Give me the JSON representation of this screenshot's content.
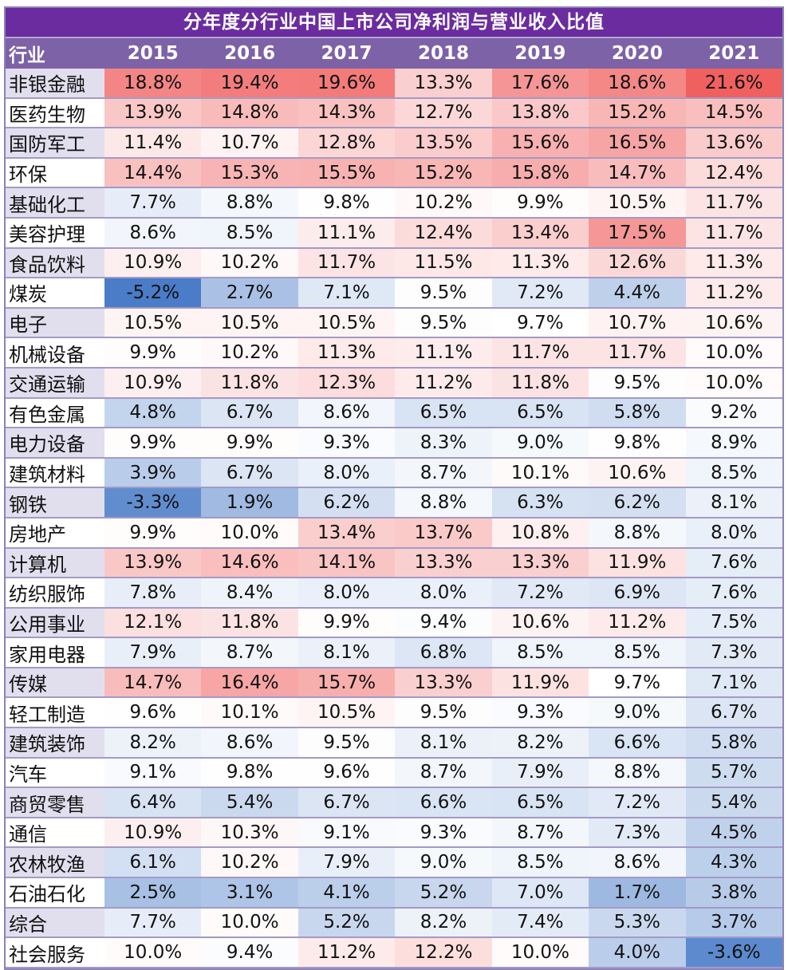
{
  "title": "分年度分行业中国上市公司净利润与营业收入比值",
  "header": {
    "industry_label": "行业",
    "years": [
      "2015",
      "2016",
      "2017",
      "2018",
      "2019",
      "2020",
      "2021"
    ]
  },
  "colors": {
    "title_bg": "#6a2c9e",
    "header_bg": "#7d62a8",
    "low": "#4a7cc8",
    "mid": "#ffffff",
    "high": "#f0605f"
  },
  "chart_data": {
    "type": "table",
    "title": "分年度分行业中国上市公司净利润与营业收入比值",
    "columns": [
      "行业",
      "2015",
      "2016",
      "2017",
      "2018",
      "2019",
      "2020",
      "2021"
    ],
    "unit": "%",
    "rows": [
      {
        "industry": "非银金融",
        "values": [
          18.8,
          19.4,
          19.6,
          13.3,
          17.6,
          18.6,
          21.6
        ]
      },
      {
        "industry": "医药生物",
        "values": [
          13.9,
          14.8,
          14.3,
          12.7,
          13.8,
          15.2,
          14.5
        ]
      },
      {
        "industry": "国防军工",
        "values": [
          11.4,
          10.7,
          12.8,
          13.5,
          15.6,
          16.5,
          13.6
        ]
      },
      {
        "industry": "环保",
        "values": [
          14.4,
          15.3,
          15.5,
          15.2,
          15.8,
          14.7,
          12.4
        ]
      },
      {
        "industry": "基础化工",
        "values": [
          7.7,
          8.8,
          9.8,
          10.2,
          9.9,
          10.5,
          11.7
        ]
      },
      {
        "industry": "美容护理",
        "values": [
          8.6,
          8.5,
          11.1,
          12.4,
          13.4,
          17.5,
          11.7
        ]
      },
      {
        "industry": "食品饮料",
        "values": [
          10.9,
          10.2,
          11.7,
          11.5,
          11.3,
          12.6,
          11.3
        ]
      },
      {
        "industry": "煤炭",
        "values": [
          -5.2,
          2.7,
          7.1,
          9.5,
          7.2,
          4.4,
          11.2
        ]
      },
      {
        "industry": "电子",
        "values": [
          10.5,
          10.5,
          10.5,
          9.5,
          9.7,
          10.7,
          10.6
        ]
      },
      {
        "industry": "机械设备",
        "values": [
          9.9,
          10.2,
          11.3,
          11.1,
          11.7,
          11.7,
          10.0
        ]
      },
      {
        "industry": "交通运输",
        "values": [
          10.9,
          11.8,
          12.3,
          11.2,
          11.8,
          9.5,
          10.0
        ]
      },
      {
        "industry": "有色金属",
        "values": [
          4.8,
          6.7,
          8.6,
          6.5,
          6.5,
          5.8,
          9.2
        ]
      },
      {
        "industry": "电力设备",
        "values": [
          9.9,
          9.9,
          9.3,
          8.3,
          9.0,
          9.8,
          8.9
        ]
      },
      {
        "industry": "建筑材料",
        "values": [
          3.9,
          6.7,
          8.0,
          8.7,
          10.1,
          10.6,
          8.5
        ]
      },
      {
        "industry": "钢铁",
        "values": [
          -3.3,
          1.9,
          6.2,
          8.8,
          6.3,
          6.2,
          8.1
        ]
      },
      {
        "industry": "房地产",
        "values": [
          9.9,
          10.0,
          13.4,
          13.7,
          10.8,
          8.8,
          8.0
        ]
      },
      {
        "industry": "计算机",
        "values": [
          13.9,
          14.6,
          14.1,
          13.3,
          13.3,
          11.9,
          7.6
        ]
      },
      {
        "industry": "纺织服饰",
        "values": [
          7.8,
          8.4,
          8.0,
          8.0,
          7.2,
          6.9,
          7.6
        ]
      },
      {
        "industry": "公用事业",
        "values": [
          12.1,
          11.8,
          9.9,
          9.4,
          10.6,
          11.2,
          7.5
        ]
      },
      {
        "industry": "家用电器",
        "values": [
          7.9,
          8.7,
          8.1,
          6.8,
          8.5,
          8.5,
          7.3
        ]
      },
      {
        "industry": "传媒",
        "values": [
          14.7,
          16.4,
          15.7,
          13.3,
          11.9,
          9.7,
          7.1
        ]
      },
      {
        "industry": "轻工制造",
        "values": [
          9.6,
          10.1,
          10.5,
          9.5,
          9.3,
          9.0,
          6.7
        ]
      },
      {
        "industry": "建筑装饰",
        "values": [
          8.2,
          8.6,
          9.5,
          8.1,
          8.2,
          6.6,
          5.8
        ]
      },
      {
        "industry": "汽车",
        "values": [
          9.1,
          9.8,
          9.6,
          8.7,
          7.9,
          8.8,
          5.7
        ]
      },
      {
        "industry": "商贸零售",
        "values": [
          6.4,
          5.4,
          6.7,
          6.6,
          6.5,
          7.2,
          5.4
        ]
      },
      {
        "industry": "通信",
        "values": [
          10.9,
          10.3,
          9.1,
          9.3,
          8.7,
          7.3,
          4.5
        ]
      },
      {
        "industry": "农林牧渔",
        "values": [
          6.1,
          10.2,
          7.9,
          9.0,
          8.5,
          8.6,
          4.3
        ]
      },
      {
        "industry": "石油石化",
        "values": [
          2.5,
          3.1,
          4.1,
          5.2,
          7.0,
          1.7,
          3.8
        ]
      },
      {
        "industry": "综合",
        "values": [
          7.7,
          10.0,
          5.2,
          8.2,
          7.4,
          5.3,
          3.7
        ]
      },
      {
        "industry": "社会服务",
        "values": [
          10.0,
          9.4,
          11.2,
          12.2,
          10.0,
          4.0,
          -3.6
        ]
      }
    ]
  }
}
